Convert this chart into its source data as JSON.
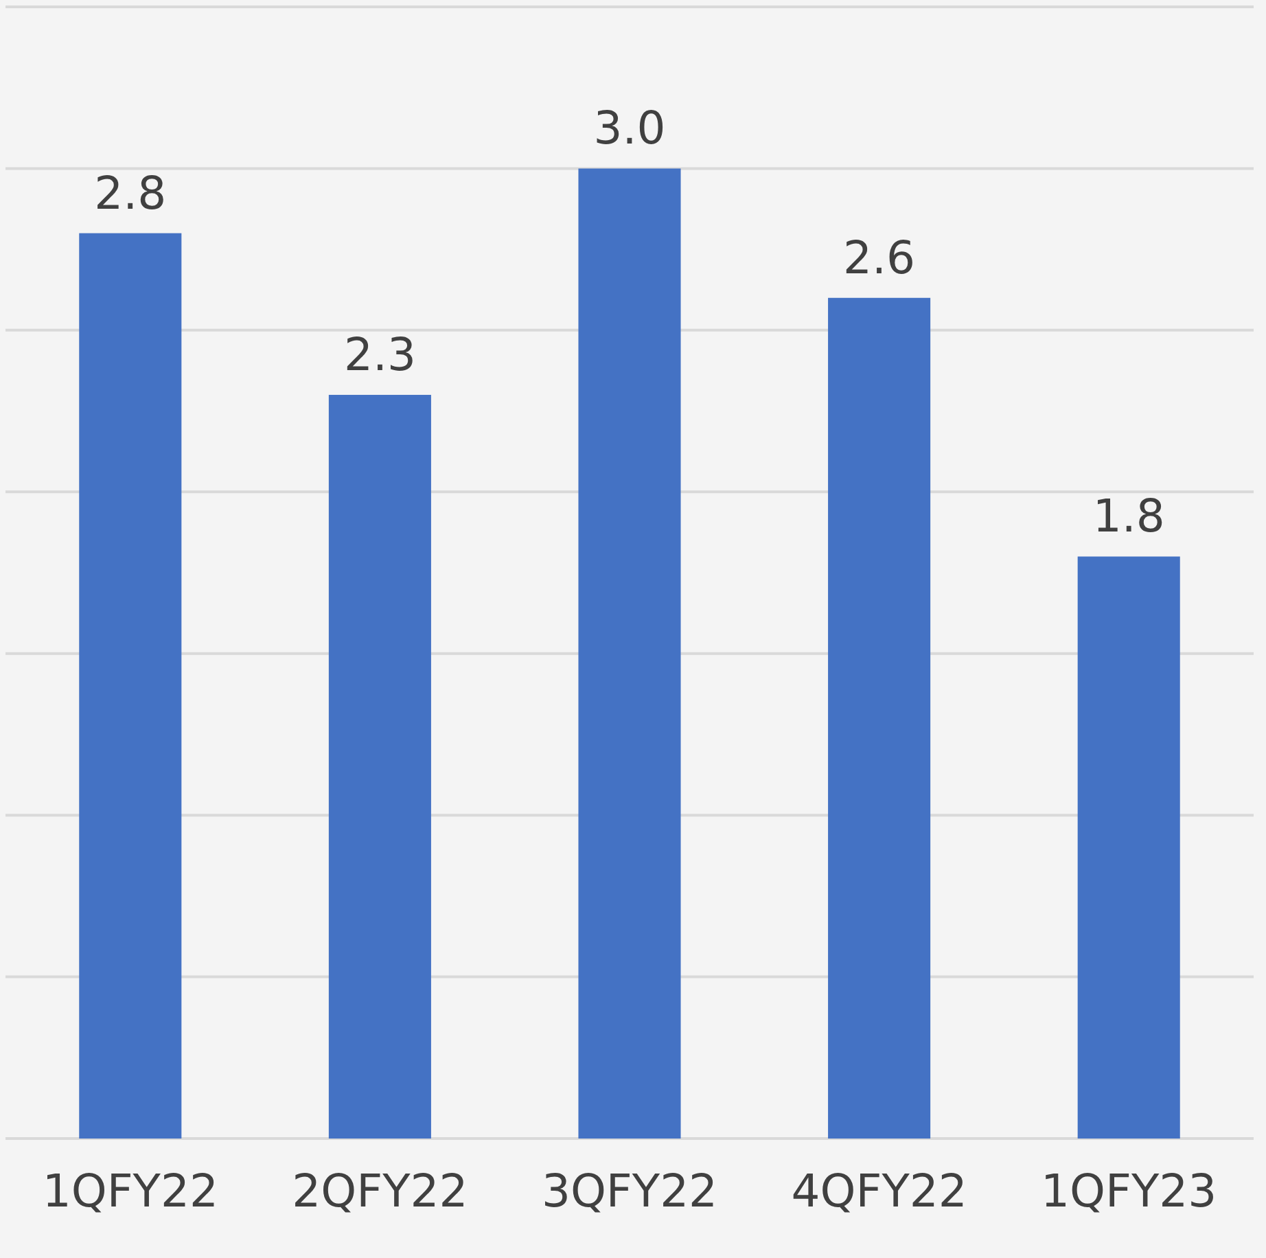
{
  "chart_data": {
    "type": "bar",
    "categories": [
      "1QFY22",
      "2QFY22",
      "3QFY22",
      "4QFY22",
      "1QFY23"
    ],
    "values": [
      2.8,
      2.3,
      3.0,
      2.6,
      1.8
    ],
    "color": "#4472c4",
    "ylim": [
      0,
      3.5
    ],
    "yticks": [
      {
        "value": 0,
        "label": null
      },
      {
        "value": 0.5,
        "label": null
      },
      {
        "value": 1,
        "label": null
      },
      {
        "value": 1.5,
        "label": null
      },
      {
        "value": 2,
        "label": null
      },
      {
        "value": 2.5,
        "label": null
      },
      {
        "value": 3,
        "label": null
      },
      {
        "value": 3.5,
        "label": null
      }
    ],
    "tick_labels": "x",
    "grid": "y",
    "value_labels": [
      "2.8",
      "2.3",
      "3.0",
      "2.6",
      "1.8"
    ]
  }
}
